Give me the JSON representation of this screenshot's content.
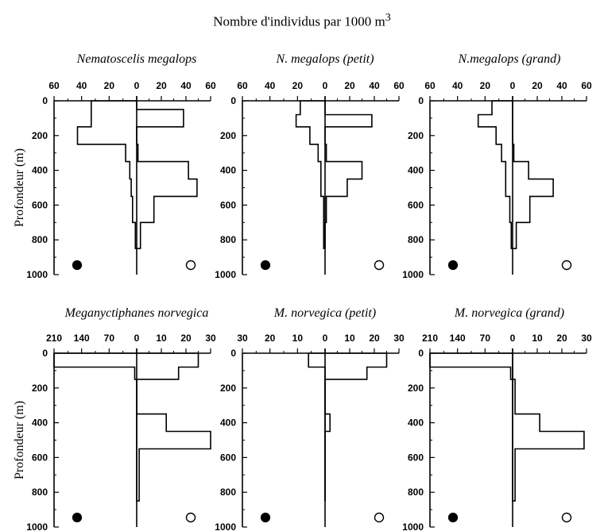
{
  "figure": {
    "title": "Nombre d'individus par 1000 m",
    "title_sup": "3"
  },
  "chart_data": [
    {
      "type": "bar",
      "title": "Nematoscelis megalops",
      "ylabel": "Profondeur (m)",
      "ylim": [
        1000,
        0
      ],
      "yticks": [
        0,
        200,
        400,
        600,
        800,
        1000
      ],
      "xlim_left": [
        0,
        60
      ],
      "xlim_right": [
        0,
        60
      ],
      "left_ticks": [
        60,
        40,
        20,
        0
      ],
      "right_ticks": [
        0,
        20,
        40,
        60
      ],
      "legend": [
        "day (filled circle)",
        "night (open circle)"
      ],
      "day": [
        {
          "from": 0,
          "to": 50,
          "value": 33
        },
        {
          "from": 50,
          "to": 150,
          "value": 33
        },
        {
          "from": 150,
          "to": 250,
          "value": 43
        },
        {
          "from": 250,
          "to": 350,
          "value": 8
        },
        {
          "from": 350,
          "to": 450,
          "value": 5
        },
        {
          "from": 450,
          "to": 550,
          "value": 4
        },
        {
          "from": 550,
          "to": 700,
          "value": 3
        },
        {
          "from": 700,
          "to": 850,
          "value": 1
        }
      ],
      "night": [
        {
          "from": 0,
          "to": 50,
          "value": 0
        },
        {
          "from": 50,
          "to": 150,
          "value": 38
        },
        {
          "from": 150,
          "to": 250,
          "value": 0
        },
        {
          "from": 250,
          "to": 350,
          "value": 1
        },
        {
          "from": 350,
          "to": 450,
          "value": 42
        },
        {
          "from": 450,
          "to": 550,
          "value": 49
        },
        {
          "from": 550,
          "to": 700,
          "value": 14
        },
        {
          "from": 700,
          "to": 850,
          "value": 3
        }
      ]
    },
    {
      "type": "bar",
      "title": "N. megalops (petit)",
      "ylabel": "",
      "ylim": [
        1000,
        0
      ],
      "yticks": [
        0,
        200,
        400,
        600,
        800,
        1000
      ],
      "xlim_left": [
        0,
        60
      ],
      "xlim_right": [
        0,
        60
      ],
      "left_ticks": [
        60,
        40,
        20,
        0
      ],
      "right_ticks": [
        0,
        20,
        40,
        60
      ],
      "legend": [
        "day (filled circle)",
        "night (open circle)"
      ],
      "day": [
        {
          "from": 0,
          "to": 80,
          "value": 18
        },
        {
          "from": 80,
          "to": 150,
          "value": 21
        },
        {
          "from": 150,
          "to": 250,
          "value": 11
        },
        {
          "from": 250,
          "to": 350,
          "value": 5
        },
        {
          "from": 350,
          "to": 450,
          "value": 3
        },
        {
          "from": 450,
          "to": 550,
          "value": 3
        },
        {
          "from": 550,
          "to": 700,
          "value": 1
        },
        {
          "from": 700,
          "to": 850,
          "value": 1
        }
      ],
      "night": [
        {
          "from": 0,
          "to": 80,
          "value": 0
        },
        {
          "from": 80,
          "to": 150,
          "value": 38
        },
        {
          "from": 150,
          "to": 250,
          "value": 0
        },
        {
          "from": 250,
          "to": 350,
          "value": 1
        },
        {
          "from": 350,
          "to": 450,
          "value": 30
        },
        {
          "from": 450,
          "to": 550,
          "value": 18
        },
        {
          "from": 550,
          "to": 700,
          "value": 1
        },
        {
          "from": 700,
          "to": 850,
          "value": 0
        }
      ]
    },
    {
      "type": "bar",
      "title": "N.megalops (grand)",
      "ylabel": "",
      "ylim": [
        1000,
        0
      ],
      "yticks": [
        0,
        200,
        400,
        600,
        800,
        1000
      ],
      "xlim_left": [
        0,
        60
      ],
      "xlim_right": [
        0,
        60
      ],
      "left_ticks": [
        60,
        40,
        20,
        0
      ],
      "right_ticks": [
        0,
        20,
        40,
        60
      ],
      "legend": [
        "day (filled circle)",
        "night (open circle)"
      ],
      "day": [
        {
          "from": 0,
          "to": 80,
          "value": 15
        },
        {
          "from": 80,
          "to": 150,
          "value": 25
        },
        {
          "from": 150,
          "to": 250,
          "value": 12
        },
        {
          "from": 250,
          "to": 350,
          "value": 8
        },
        {
          "from": 350,
          "to": 450,
          "value": 5
        },
        {
          "from": 450,
          "to": 550,
          "value": 5
        },
        {
          "from": 550,
          "to": 700,
          "value": 2
        },
        {
          "from": 700,
          "to": 850,
          "value": 1
        }
      ],
      "night": [
        {
          "from": 0,
          "to": 80,
          "value": 0
        },
        {
          "from": 80,
          "to": 150,
          "value": 0
        },
        {
          "from": 150,
          "to": 250,
          "value": 0
        },
        {
          "from": 250,
          "to": 350,
          "value": 1
        },
        {
          "from": 350,
          "to": 450,
          "value": 13
        },
        {
          "from": 450,
          "to": 550,
          "value": 33
        },
        {
          "from": 550,
          "to": 700,
          "value": 14
        },
        {
          "from": 700,
          "to": 850,
          "value": 3
        }
      ]
    },
    {
      "type": "bar",
      "title": "Meganyctiphanes norvegica",
      "ylabel": "Profondeur (m)",
      "ylim": [
        1000,
        0
      ],
      "yticks": [
        0,
        200,
        400,
        600,
        800,
        1000
      ],
      "xlim_left": [
        0,
        210
      ],
      "xlim_right": [
        0,
        30
      ],
      "left_ticks": [
        210,
        140,
        70,
        0
      ],
      "right_ticks": [
        0,
        10,
        20,
        30
      ],
      "legend": [
        "day (filled circle)",
        "night (open circle)"
      ],
      "day": [
        {
          "from": 0,
          "to": 80,
          "value": 210
        },
        {
          "from": 80,
          "to": 150,
          "value": 5
        },
        {
          "from": 150,
          "to": 250,
          "value": 0
        },
        {
          "from": 250,
          "to": 350,
          "value": 0
        },
        {
          "from": 350,
          "to": 450,
          "value": 0
        },
        {
          "from": 450,
          "to": 550,
          "value": 0
        },
        {
          "from": 550,
          "to": 700,
          "value": 0
        },
        {
          "from": 700,
          "to": 850,
          "value": 0
        }
      ],
      "night": [
        {
          "from": 0,
          "to": 80,
          "value": 25
        },
        {
          "from": 80,
          "to": 150,
          "value": 17
        },
        {
          "from": 150,
          "to": 250,
          "value": 0
        },
        {
          "from": 250,
          "to": 350,
          "value": 0
        },
        {
          "from": 350,
          "to": 450,
          "value": 12
        },
        {
          "from": 450,
          "to": 550,
          "value": 30
        },
        {
          "from": 550,
          "to": 700,
          "value": 1
        },
        {
          "from": 700,
          "to": 850,
          "value": 1
        }
      ]
    },
    {
      "type": "bar",
      "title": "M. norvegica (petit)",
      "ylabel": "",
      "ylim": [
        1000,
        0
      ],
      "yticks": [
        0,
        200,
        400,
        600,
        800,
        1000
      ],
      "xlim_left": [
        0,
        30
      ],
      "xlim_right": [
        0,
        30
      ],
      "left_ticks": [
        30,
        20,
        10,
        0
      ],
      "right_ticks": [
        0,
        10,
        20,
        30
      ],
      "legend": [
        "day (filled circle)",
        "night (open circle)"
      ],
      "day": [
        {
          "from": 0,
          "to": 80,
          "value": 6
        },
        {
          "from": 80,
          "to": 150,
          "value": 0
        },
        {
          "from": 150,
          "to": 250,
          "value": 0
        },
        {
          "from": 250,
          "to": 350,
          "value": 0
        },
        {
          "from": 350,
          "to": 450,
          "value": 0
        },
        {
          "from": 450,
          "to": 550,
          "value": 0
        },
        {
          "from": 550,
          "to": 700,
          "value": 0
        },
        {
          "from": 700,
          "to": 850,
          "value": 0
        }
      ],
      "night": [
        {
          "from": 0,
          "to": 80,
          "value": 25
        },
        {
          "from": 80,
          "to": 150,
          "value": 17
        },
        {
          "from": 150,
          "to": 250,
          "value": 0
        },
        {
          "from": 250,
          "to": 350,
          "value": 0
        },
        {
          "from": 350,
          "to": 450,
          "value": 2
        },
        {
          "from": 450,
          "to": 550,
          "value": 0
        },
        {
          "from": 550,
          "to": 700,
          "value": 0
        },
        {
          "from": 700,
          "to": 850,
          "value": 0
        }
      ]
    },
    {
      "type": "bar",
      "title": "M. norvegica (grand)",
      "ylabel": "",
      "ylim": [
        1000,
        0
      ],
      "yticks": [
        0,
        200,
        400,
        600,
        800,
        1000
      ],
      "xlim_left": [
        0,
        210
      ],
      "xlim_right": [
        0,
        30
      ],
      "left_ticks": [
        210,
        140,
        70,
        0
      ],
      "right_ticks": [
        0,
        10,
        20,
        30
      ],
      "legend": [
        "day (filled circle)",
        "night (open circle)"
      ],
      "day": [
        {
          "from": 0,
          "to": 80,
          "value": 210
        },
        {
          "from": 80,
          "to": 150,
          "value": 5
        },
        {
          "from": 150,
          "to": 250,
          "value": 0
        },
        {
          "from": 250,
          "to": 350,
          "value": 0
        },
        {
          "from": 350,
          "to": 450,
          "value": 0
        },
        {
          "from": 450,
          "to": 550,
          "value": 0
        },
        {
          "from": 550,
          "to": 700,
          "value": 0
        },
        {
          "from": 700,
          "to": 850,
          "value": 0
        }
      ],
      "night": [
        {
          "from": 0,
          "to": 80,
          "value": 0
        },
        {
          "from": 80,
          "to": 150,
          "value": 0
        },
        {
          "from": 150,
          "to": 250,
          "value": 1
        },
        {
          "from": 250,
          "to": 350,
          "value": 1
        },
        {
          "from": 350,
          "to": 450,
          "value": 11
        },
        {
          "from": 450,
          "to": 550,
          "value": 29
        },
        {
          "from": 550,
          "to": 700,
          "value": 1
        },
        {
          "from": 700,
          "to": 850,
          "value": 1
        }
      ]
    }
  ]
}
